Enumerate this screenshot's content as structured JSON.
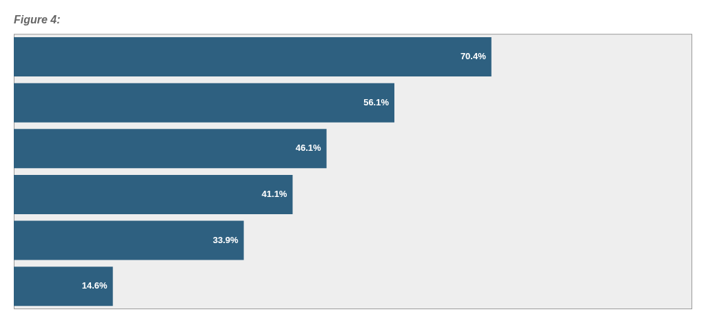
{
  "chart_data": {
    "type": "bar",
    "orientation": "horizontal",
    "title": "Figure 4:",
    "categories": [
      null,
      null,
      null,
      null,
      null,
      null
    ],
    "values": [
      70.4,
      56.1,
      46.1,
      41.1,
      33.9,
      14.6
    ],
    "value_labels": [
      "70.4%",
      "56.1%",
      "46.1%",
      "41.1%",
      "33.9%",
      "14.6%"
    ],
    "color": "#2E6080",
    "xlim": [
      0,
      100
    ],
    "grid": false,
    "data_labels": true,
    "tick_labels": false
  }
}
